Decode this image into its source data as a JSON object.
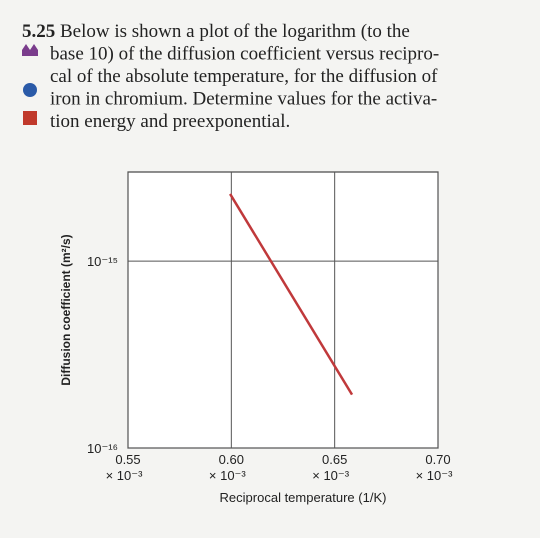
{
  "problem": {
    "number": "5.25",
    "lines": [
      "Below is shown a plot of the logarithm (to the",
      "base 10) of the diffusion coefficient versus recipro-",
      "cal of the absolute temperature, for the diffusion of",
      "iron in chromium. Determine values for the activa-",
      "tion energy and preexponential."
    ]
  },
  "chart_data": {
    "type": "line",
    "xlabel": "Reciprocal temperature (1/K)",
    "ylabel": "Diffusion coefficient (m²/s)",
    "series": [
      {
        "color": "#c0393b",
        "x": [
          0.0005994,
          0.0006584
        ],
        "values": [
          2.29e-15,
          1.93e-16
        ]
      }
    ],
    "xlim": [
      0.00055,
      0.0007
    ],
    "xticks": [
      {
        "value": 0.00055,
        "label": "0.55 × 10⁻³"
      },
      {
        "value": 0.0006,
        "label": "0.60 × 10⁻³"
      },
      {
        "value": 0.00065,
        "label": "0.65 × 10⁻³"
      },
      {
        "value": 0.0007,
        "label": "0.70 × 10⁻³"
      }
    ],
    "ylim": [
      1e-16,
      3e-15
    ],
    "yscale": "log",
    "yticks": [
      {
        "value": 1e-16,
        "label": "10⁻¹⁶"
      },
      {
        "value": 1e-15,
        "label": "10⁻¹⁵"
      }
    ],
    "grid": true
  }
}
